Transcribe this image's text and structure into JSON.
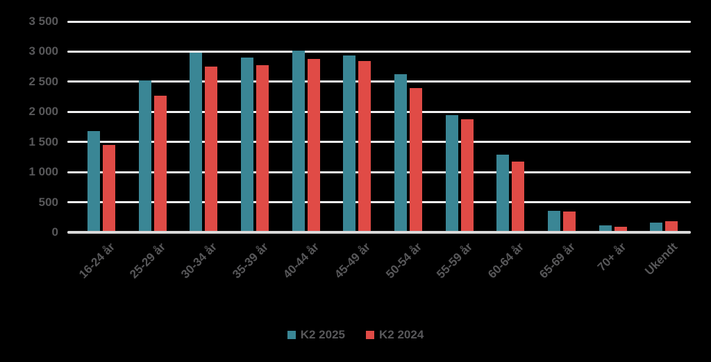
{
  "colors": {
    "background": "#000000",
    "grid": "#F1F1F2",
    "zero_axis": "#D9D9D9",
    "text": "#58585A",
    "series_2025": "#3A8695",
    "series_2024": "#E04B46"
  },
  "chart_data": {
    "type": "bar",
    "categories": [
      "16-24 år",
      "25-29 år",
      "30-34 år",
      "35-39 år",
      "40-44 år",
      "45-49 år",
      "50-54 år",
      "55-59 år",
      "60-64 år",
      "65-69 år",
      "70+ år",
      "Ukendt"
    ],
    "series": [
      {
        "name": "K2 2025",
        "color": "#3A8695",
        "values": [
          1680,
          2520,
          2980,
          2900,
          3020,
          2940,
          2620,
          1950,
          1290,
          360,
          110,
          160
        ]
      },
      {
        "name": "K2 2024",
        "color": "#E04B46",
        "values": [
          1450,
          2270,
          2750,
          2770,
          2880,
          2840,
          2400,
          1880,
          1170,
          350,
          90,
          190
        ]
      }
    ],
    "xlabel": "",
    "ylabel": "",
    "ylim": [
      0,
      3500
    ],
    "ytick_interval": 500,
    "yticks": [
      {
        "value": 3500,
        "label": "3 500"
      },
      {
        "value": 3000,
        "label": "3 000"
      },
      {
        "value": 2500,
        "label": "2 500"
      },
      {
        "value": 2000,
        "label": "2 000"
      },
      {
        "value": 1500,
        "label": "1 500"
      },
      {
        "value": 1000,
        "label": "1 000"
      },
      {
        "value": 500,
        "label": "500"
      },
      {
        "value": 0,
        "label": "0"
      }
    ],
    "grid": true,
    "legend_position": "bottom",
    "x_label_rotation_deg": -45
  }
}
